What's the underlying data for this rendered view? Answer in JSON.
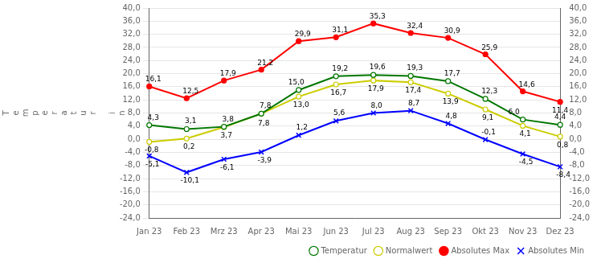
{
  "chart_data": {
    "type": "line",
    "ylabel": "Temperatur in",
    "categories": [
      "Jan 23",
      "Feb 23",
      "Mrz 23",
      "Apr 23",
      "Mai 23",
      "Jun 23",
      "Jul 23",
      "Aug 23",
      "Sep 23",
      "Okt 23",
      "Nov 23",
      "Dez 23"
    ],
    "series": [
      {
        "name": "Temperatur",
        "color": "#007700",
        "marker": "open_circle",
        "values": [
          4.3,
          3.1,
          3.8,
          7.8,
          15.0,
          19.2,
          19.6,
          19.3,
          17.7,
          12.3,
          6.0,
          4.4
        ],
        "value_labels": [
          "4,3",
          "3,1",
          "3,8",
          "7,8",
          "15,0",
          "19,2",
          "19,6",
          "19,3",
          "17,7",
          "12,3",
          "6,0",
          "4,4"
        ]
      },
      {
        "name": "Normalwert",
        "color": "#CCCC00",
        "marker": "open_circle",
        "values": [
          -0.8,
          0.2,
          3.7,
          7.8,
          13.0,
          16.7,
          17.9,
          17.4,
          13.9,
          9.1,
          4.1,
          0.8
        ],
        "value_labels": [
          "-0,8",
          "0,2",
          "3,7",
          "7,8",
          "13,0",
          "16,7",
          "17,9",
          "17,4",
          "13,9",
          "9,1",
          "4,1",
          "0,8"
        ]
      },
      {
        "name": "Absolutes Max",
        "color": "#FF0000",
        "marker": "circle",
        "values": [
          16.1,
          12.5,
          17.9,
          21.2,
          29.9,
          31.1,
          35.3,
          32.4,
          30.9,
          25.9,
          14.6,
          11.4
        ],
        "value_labels": [
          "16,1",
          "12,5",
          "17,9",
          "21,2",
          "29,9",
          "31,1",
          "35,3",
          "32,4",
          "30,9",
          "25,9",
          "14,6",
          "11,4"
        ]
      },
      {
        "name": "Absolutes Min",
        "color": "#0000FF",
        "marker": "x",
        "values": [
          -5.1,
          -10.1,
          -6.1,
          -3.9,
          1.2,
          5.6,
          8.0,
          8.7,
          4.8,
          -0.1,
          -4.5,
          -8.4
        ],
        "value_labels": [
          "-5,1",
          "-10,1",
          "-6,1",
          "-3,9",
          "1,2",
          "5,6",
          "8,0",
          "8,7",
          "4,8",
          "-0,1",
          "-4,5",
          "-8,4"
        ]
      }
    ],
    "ylim": [
      -24,
      40
    ],
    "yticks": [
      {
        "value": -24,
        "label": "-24,0"
      },
      {
        "value": -20,
        "label": "-20,0"
      },
      {
        "value": -16,
        "label": "-16,0"
      },
      {
        "value": -12,
        "label": "-12,0"
      },
      {
        "value": -8,
        "label": "-8,0"
      },
      {
        "value": -4,
        "label": "-4,0"
      },
      {
        "value": 0,
        "label": "0,0"
      },
      {
        "value": 4,
        "label": "4,0"
      },
      {
        "value": 8,
        "label": "8,0"
      },
      {
        "value": 12,
        "label": "12,0"
      },
      {
        "value": 16,
        "label": "16,0"
      },
      {
        "value": 20,
        "label": "20,0"
      },
      {
        "value": 24,
        "label": "24,0"
      },
      {
        "value": 28,
        "label": "28,0"
      },
      {
        "value": 32,
        "label": "32,0"
      },
      {
        "value": 36,
        "label": "36,0"
      },
      {
        "value": 40,
        "label": "40,0"
      }
    ],
    "y2lim": [
      -24,
      40
    ],
    "y2ticks": [
      {
        "value": -24,
        "label": "-24,0"
      },
      {
        "value": -20,
        "label": "-20,0"
      },
      {
        "value": -16,
        "label": "-16,0"
      },
      {
        "value": -12,
        "label": "-12,0"
      },
      {
        "value": -8,
        "label": "-8,0"
      },
      {
        "value": -4,
        "label": "-4,0"
      },
      {
        "value": 0,
        "label": "0,0"
      },
      {
        "value": 4,
        "label": "4,0"
      },
      {
        "value": 8,
        "label": "8,0"
      },
      {
        "value": 12,
        "label": "12,0"
      },
      {
        "value": 16,
        "label": "16,0"
      },
      {
        "value": 20,
        "label": "20,0"
      },
      {
        "value": 24,
        "label": "24,0"
      },
      {
        "value": 28,
        "label": "28,0"
      },
      {
        "value": 32,
        "label": "32,0"
      },
      {
        "value": 36,
        "label": "36,0"
      },
      {
        "value": 40,
        "label": "40,0"
      }
    ],
    "grid": true,
    "legend": "lower right",
    "data_labels": true
  }
}
